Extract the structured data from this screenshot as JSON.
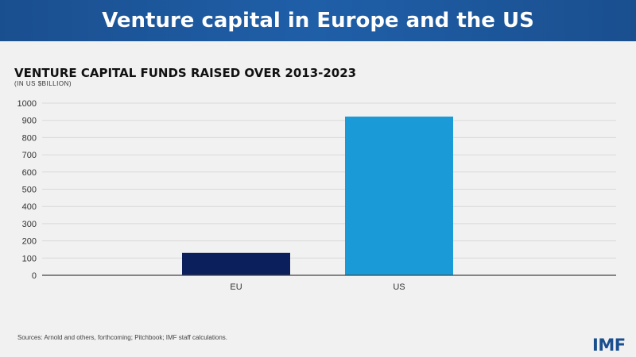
{
  "header": {
    "title": "Venture capital in Europe and the US"
  },
  "chart_data": {
    "type": "bar",
    "title": "VENTURE CAPITAL FUNDS RAISED OVER 2013-2023",
    "subtitle": "(IN US $BILLION)",
    "categories": [
      "EU",
      "US"
    ],
    "values": [
      130,
      922
    ],
    "ylim": [
      0,
      1000
    ],
    "yticks": [
      0,
      100,
      200,
      300,
      400,
      500,
      600,
      700,
      800,
      900,
      1000
    ],
    "xlabel": "",
    "ylabel": "",
    "grid": true,
    "colors": [
      "#0b1f5c",
      "#1a9ad7"
    ]
  },
  "footer": {
    "source": "Sources: Arnold and others, forthcoming;  Pitchbook; IMF staff calculations.",
    "logo": "IMF"
  }
}
